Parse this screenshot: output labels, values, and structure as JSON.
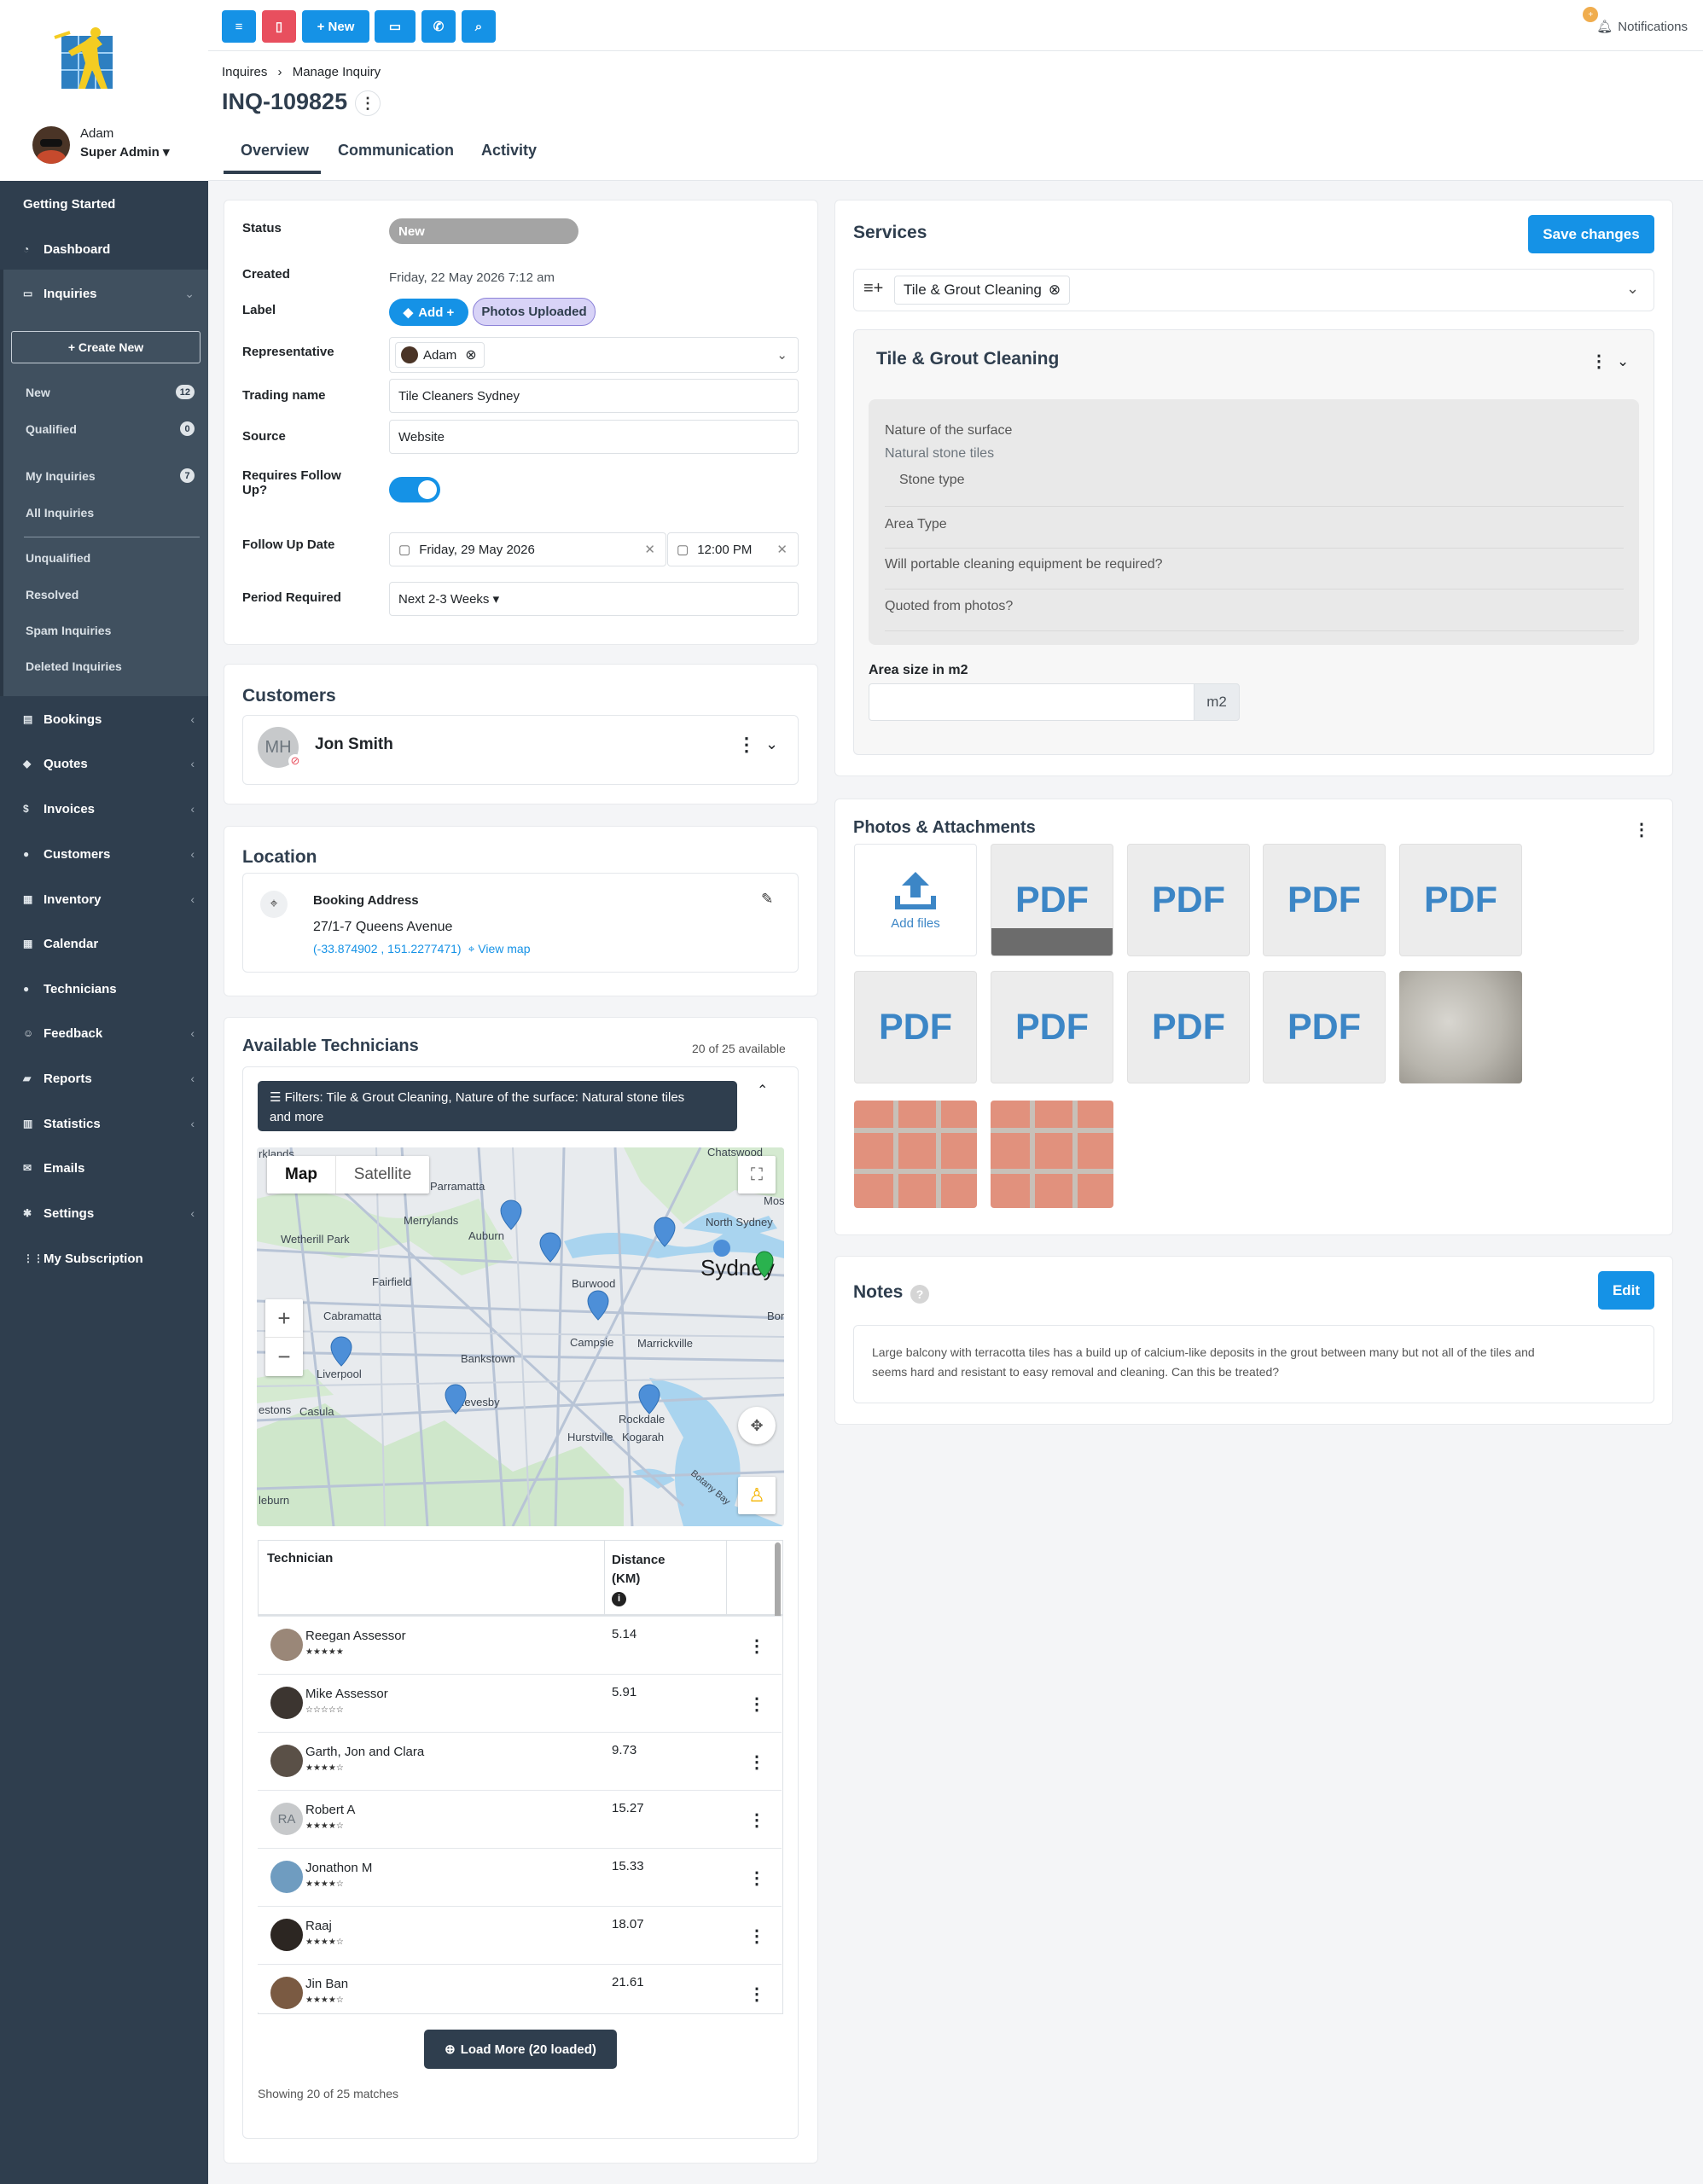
{
  "sidebar": {
    "user_name": "Adam",
    "user_role": "Super Admin ▾",
    "getting_started": "Getting Started",
    "dashboard": "Dashboard",
    "inquiries": "Inquiries",
    "create_new": "+ Create New",
    "sub": {
      "new": "New",
      "new_count": "12",
      "qualified": "Qualified",
      "qualified_count": "0",
      "my_inquiries": "My Inquiries",
      "my_count": "7",
      "all_inquiries": "All Inquiries",
      "unqualified": "Unqualified",
      "resolved": "Resolved",
      "spam": "Spam Inquiries",
      "deleted": "Deleted Inquiries"
    },
    "bookings": "Bookings",
    "quotes": "Quotes",
    "invoices": "Invoices",
    "customers": "Customers",
    "inventory": "Inventory",
    "calendar": "Calendar",
    "technicians": "Technicians",
    "feedback": "Feedback",
    "reports": "Reports",
    "statistics": "Statistics",
    "emails": "Emails",
    "settings": "Settings",
    "subscription": "My Subscription"
  },
  "topbar": {
    "new_label": "+ New",
    "notifications": "Notifications",
    "notif_badge": "+"
  },
  "header": {
    "crumb_root": "Inquires",
    "crumb_current": "Manage Inquiry",
    "title": "INQ-109825",
    "tabs": [
      "Overview",
      "Communication",
      "Activity"
    ]
  },
  "details": {
    "status_label": "Status",
    "status_value": "New",
    "created_label": "Created",
    "created_value": "Friday, 22 May 2026 7:12 am",
    "label_label": "Label",
    "add_label": "Add +",
    "photos_tag": "Photos Uploaded",
    "rep_label": "Representative",
    "rep_value": "Adam",
    "trading_label": "Trading name",
    "trading_value": "Tile Cleaners Sydney",
    "source_label": "Source",
    "source_value": "Website",
    "follow_label_1": "Requires Follow",
    "follow_label_2": "Up?",
    "follow_on": true,
    "date_label": "Follow Up Date",
    "date_value": "Friday, 29 May 2026",
    "time_value": "12:00 PM",
    "period_label": "Period Required",
    "period_value": "Next 2-3 Weeks ▾"
  },
  "customers": {
    "title": "Customers",
    "initials": "MH",
    "name": "Jon Smith"
  },
  "location": {
    "title": "Location",
    "address_label": "Booking Address",
    "address": "27/1-7 Queens Avenue",
    "coords": "(-33.874902 , 151.2277471)",
    "view_map": "View map"
  },
  "technicians": {
    "title": "Available Technicians",
    "available": "20 of 25 available",
    "filter_line1": "Filters: Tile & Grout Cleaning, Nature of the surface: Natural stone tiles",
    "filter_line2": "and more",
    "map_tab": "Map",
    "satellite_tab": "Satellite",
    "map_places": [
      "Chatswood",
      "Parramatta",
      "Merrylands",
      "Wetherill Park",
      "Auburn",
      "Fairfield",
      "Burwood",
      "Sydney",
      "Cabramatta",
      "Campsie",
      "Marrickville",
      "Bankstown",
      "Liverpool",
      "Casula",
      "Revesby",
      "Rockdale",
      "Hurstville",
      "Kogarah",
      "Botany Bay",
      "North Sydney",
      "Mos",
      "Bon",
      "leburn",
      "estons",
      "rklands"
    ],
    "col_tech": "Technician",
    "col_dist_1": "Distance",
    "col_dist_2": "(KM)",
    "rows": [
      {
        "name": "Reegan Assessor",
        "stars": "★★★★★",
        "dist": "5.14"
      },
      {
        "name": "Mike Assessor",
        "stars": "☆☆☆☆☆",
        "dist": "5.91"
      },
      {
        "name": "Garth, Jon and Clara",
        "stars": "★★★★☆",
        "dist": "9.73"
      },
      {
        "name": "Robert A",
        "stars": "★★★★☆",
        "dist": "15.27",
        "initials": "RA"
      },
      {
        "name": "Jonathon M",
        "stars": "★★★★☆",
        "dist": "15.33"
      },
      {
        "name": "Raaj",
        "stars": "★★★★☆",
        "dist": "18.07"
      },
      {
        "name": "Jin Ban",
        "stars": "★★★★☆",
        "dist": "21.61"
      }
    ],
    "load_more": "Load More (20 loaded)",
    "showing": "Showing 20 of 25 matches"
  },
  "services": {
    "title": "Services",
    "save": "Save changes",
    "chip": "Tile & Grout Cleaning",
    "service_title": "Tile & Grout Cleaning",
    "q1": "Nature of the surface",
    "a1": "Natural stone tiles",
    "q1b": "Stone type",
    "q2": "Area Type",
    "q3": "Will portable cleaning equipment be required?",
    "q4": "Quoted from photos?",
    "area_label": "Area size in m2",
    "area_unit": "m2"
  },
  "photos": {
    "title": "Photos & Attachments",
    "add_files": "Add files",
    "pdf_label": "PDF"
  },
  "notes": {
    "title": "Notes",
    "edit": "Edit",
    "text_1": "Large balcony with terracotta tiles has a build up of calcium-like deposits in the grout between many but not all of the tiles and",
    "text_2": "seems hard and resistant to easy removal and cleaning. Can this be treated?"
  },
  "colors": {
    "accent": "#1592e6",
    "sidebar": "#2f3e4e",
    "danger": "#e84f5e"
  }
}
